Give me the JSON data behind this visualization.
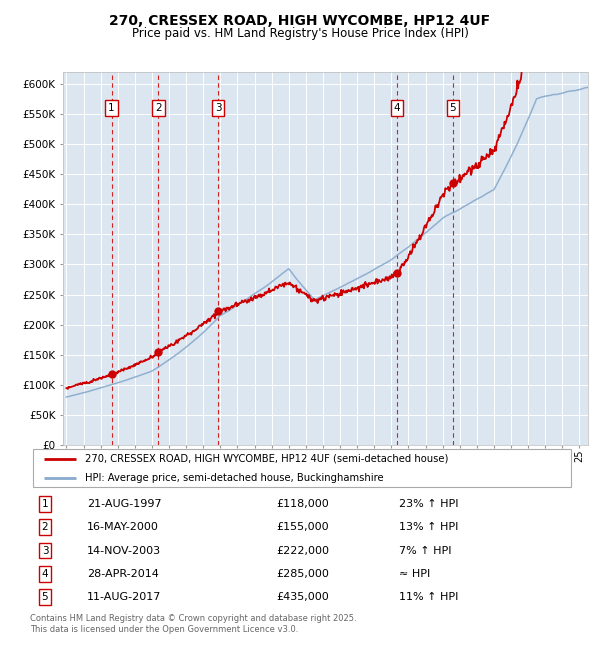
{
  "title": "270, CRESSEX ROAD, HIGH WYCOMBE, HP12 4UF",
  "subtitle": "Price paid vs. HM Land Registry's House Price Index (HPI)",
  "plot_bg_color": "#dce6f1",
  "red_line_color": "#cc0000",
  "blue_line_color": "#88aacc",
  "sale_points": [
    {
      "date_num": 1997.64,
      "price": 118000,
      "label": "1"
    },
    {
      "date_num": 2000.38,
      "price": 155000,
      "label": "2"
    },
    {
      "date_num": 2003.87,
      "price": 222000,
      "label": "3"
    },
    {
      "date_num": 2014.32,
      "price": 285000,
      "label": "4"
    },
    {
      "date_num": 2017.6,
      "price": 435000,
      "label": "5"
    }
  ],
  "vline_color": "#cc0000",
  "ylim": [
    0,
    620000
  ],
  "xlim": [
    1994.8,
    2025.5
  ],
  "yticks": [
    0,
    50000,
    100000,
    150000,
    200000,
    250000,
    300000,
    350000,
    400000,
    450000,
    500000,
    550000,
    600000
  ],
  "ytick_labels": [
    "£0",
    "£50K",
    "£100K",
    "£150K",
    "£200K",
    "£250K",
    "£300K",
    "£350K",
    "£400K",
    "£450K",
    "£500K",
    "£550K",
    "£600K"
  ],
  "xticks": [
    1995,
    1996,
    1997,
    1998,
    1999,
    2000,
    2001,
    2002,
    2003,
    2004,
    2005,
    2006,
    2007,
    2008,
    2009,
    2010,
    2011,
    2012,
    2013,
    2014,
    2015,
    2016,
    2017,
    2018,
    2019,
    2020,
    2021,
    2022,
    2023,
    2024,
    2025
  ],
  "legend_line1": "270, CRESSEX ROAD, HIGH WYCOMBE, HP12 4UF (semi-detached house)",
  "legend_line2": "HPI: Average price, semi-detached house, Buckinghamshire",
  "table_rows": [
    {
      "num": "1",
      "date": "21-AUG-1997",
      "price": "£118,000",
      "hpi": "23% ↑ HPI"
    },
    {
      "num": "2",
      "date": "16-MAY-2000",
      "price": "£155,000",
      "hpi": "13% ↑ HPI"
    },
    {
      "num": "3",
      "date": "14-NOV-2003",
      "price": "£222,000",
      "hpi": "7% ↑ HPI"
    },
    {
      "num": "4",
      "date": "28-APR-2014",
      "price": "£285,000",
      "hpi": "≈ HPI"
    },
    {
      "num": "5",
      "date": "11-AUG-2017",
      "price": "£435,000",
      "hpi": "11% ↑ HPI"
    }
  ],
  "footnote": "Contains HM Land Registry data © Crown copyright and database right 2025.\nThis data is licensed under the Open Government Licence v3.0."
}
